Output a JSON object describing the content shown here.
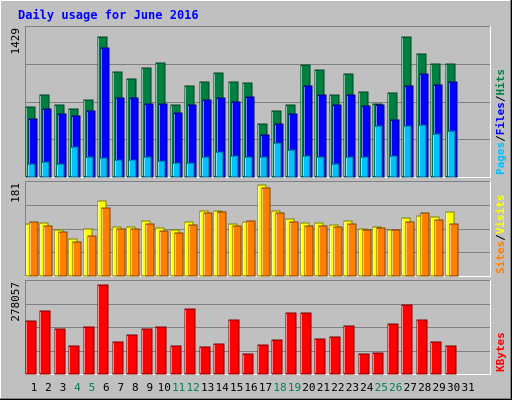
{
  "chart_data": {
    "type": "bar",
    "title": "Daily usage for June 2016",
    "categories": [
      "1",
      "2",
      "3",
      "4",
      "5",
      "6",
      "7",
      "8",
      "9",
      "10",
      "11",
      "12",
      "13",
      "14",
      "15",
      "16",
      "17",
      "18",
      "19",
      "20",
      "21",
      "22",
      "23",
      "24",
      "25",
      "26",
      "27",
      "28",
      "29",
      "30",
      "31"
    ],
    "weekend_days": [
      "4",
      "5",
      "11",
      "12",
      "18",
      "19",
      "25",
      "26"
    ],
    "panels": [
      {
        "id": "hits-files-pages",
        "ymax_label": "1429",
        "ylim": [
          0,
          1429
        ],
        "right_label_parts": [
          "Pages",
          "Files",
          "Hits"
        ],
        "series": [
          {
            "name": "Hits",
            "color": "#008040",
            "values": [
              680,
              800,
              700,
              660,
              750,
              1360,
              1020,
              950,
              1060,
              1110,
              700,
              880,
              920,
              1010,
              920,
              910,
              520,
              640,
              700,
              1090,
              1040,
              800,
              1000,
              830,
              710,
              820,
              1360,
              1200,
              1100,
              1100,
              0
            ]
          },
          {
            "name": "Files",
            "color": "#0000ff",
            "values": [
              560,
              660,
              610,
              590,
              640,
              1250,
              770,
              770,
              710,
              710,
              620,
              700,
              750,
              770,
              730,
              780,
              410,
              520,
              610,
              880,
              800,
              700,
              800,
              690,
              700,
              550,
              880,
              1000,
              890,
              920,
              0
            ]
          },
          {
            "name": "Pages",
            "color": "#00c0ff",
            "values": [
              130,
              150,
              130,
              290,
              190,
              180,
              170,
              170,
              190,
              160,
              140,
              140,
              190,
              240,
              200,
              190,
              190,
              330,
              260,
              200,
              190,
              130,
              190,
              190,
              500,
              200,
              500,
              510,
              420,
              450,
              0
            ]
          }
        ]
      },
      {
        "id": "visits-sites",
        "ymax_label": "181",
        "ylim": [
          0,
          181
        ],
        "right_label_parts": [
          "Sites",
          "Visits"
        ],
        "series": [
          {
            "name": "Visits",
            "color": "#ffff00",
            "values": [
              104,
              106,
              92,
              74,
              93,
              150,
              98,
              97,
              110,
              95,
              91,
              108,
              130,
              130,
              104,
              108,
              181,
              130,
              114,
              106,
              106,
              101,
              110,
              94,
              98,
              92,
              115,
              120,
              117,
              128,
              0
            ]
          },
          {
            "name": "Sites",
            "color": "#ff8000",
            "values": [
              107,
              100,
              88,
              68,
              80,
              136,
              93,
              94,
              104,
              90,
              85,
              102,
              125,
              127,
              100,
              109,
              175,
              125,
              108,
              100,
              100,
              97,
              104,
              92,
              96,
              91,
              108,
              126,
              112,
              103,
              0
            ]
          }
        ]
      },
      {
        "id": "kbytes",
        "ymax_label": "278057",
        "ylim": [
          0,
          278057
        ],
        "right_label_parts": [
          "KBytes"
        ],
        "series": [
          {
            "name": "KBytes",
            "color": "#ff0000",
            "values": [
              165000,
              196000,
              140000,
              88000,
              144000,
              276000,
              98000,
              122000,
              140000,
              144000,
              88000,
              202000,
              84000,
              94000,
              166000,
              62000,
              90000,
              104000,
              190000,
              190000,
              108000,
              114000,
              148000,
              62000,
              66000,
              156000,
              212000,
              168000,
              100000,
              88000,
              0
            ]
          }
        ]
      }
    ]
  }
}
